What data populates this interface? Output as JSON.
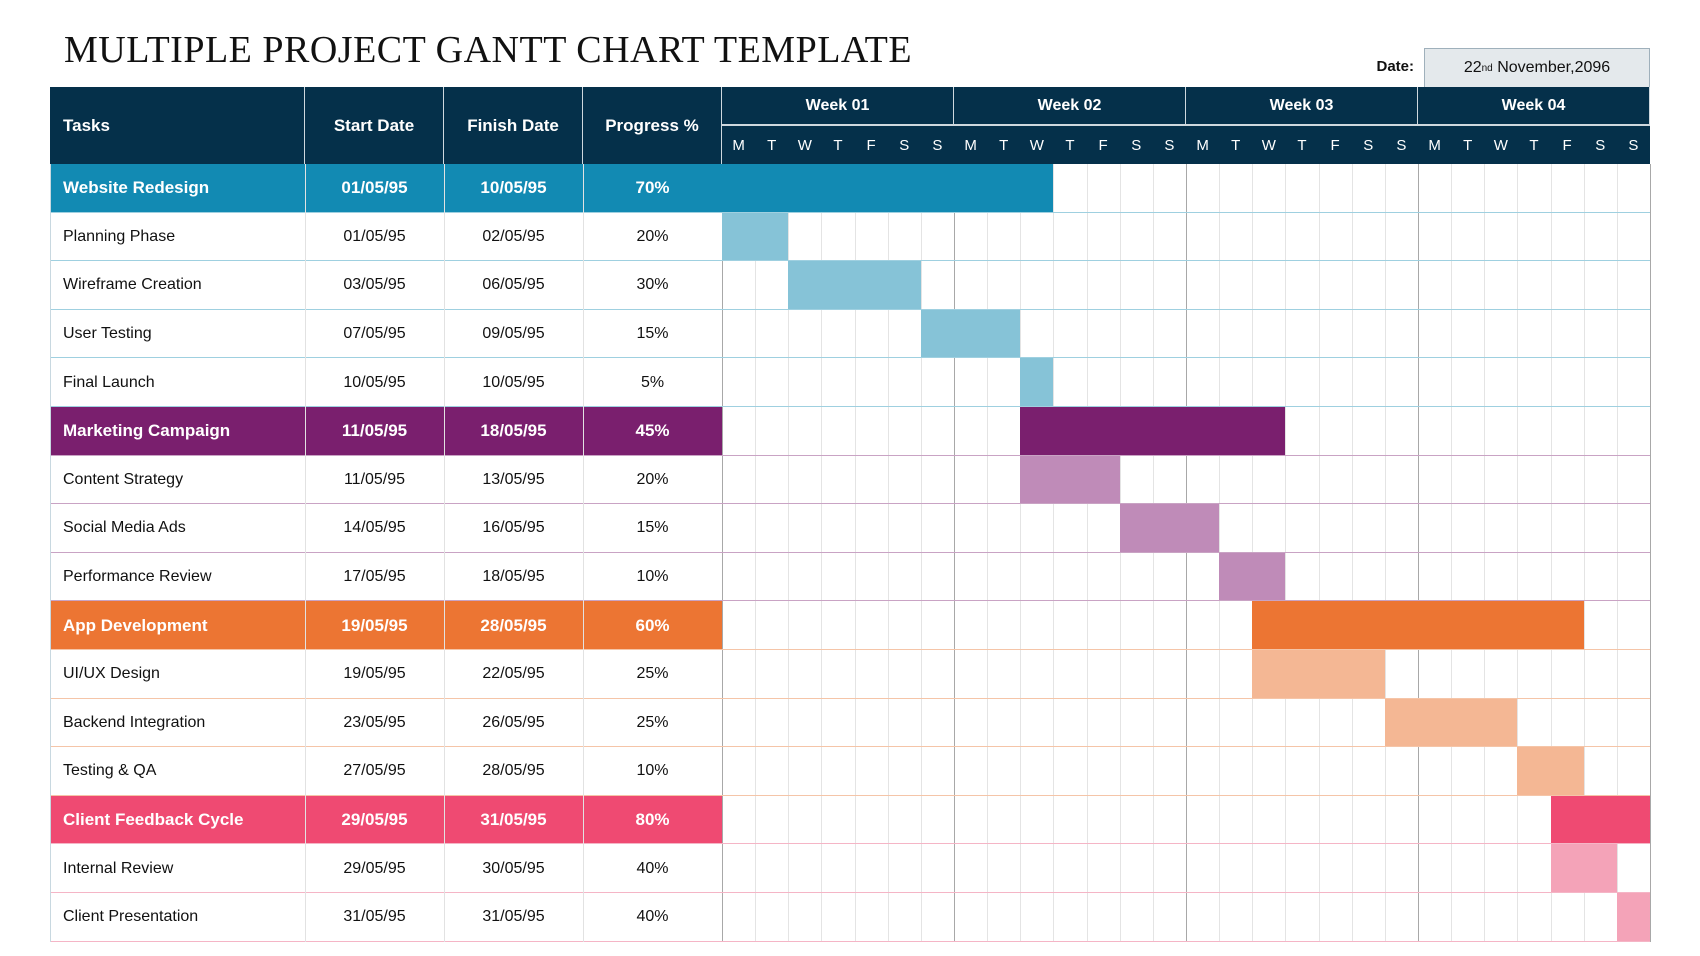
{
  "title": "MULTIPLE PROJECT GANTT CHART TEMPLATE",
  "date": {
    "label": "Date:",
    "day": "22",
    "suffix": "nd",
    "rest": " November,2096"
  },
  "chart_data": {
    "type": "gantt",
    "columns": [
      "Tasks",
      "Start Date",
      "Finish Date",
      "Progress %"
    ],
    "weeks": [
      "Week 01",
      "Week 02",
      "Week 03",
      "Week 04"
    ],
    "days": [
      "M",
      "T",
      "W",
      "T",
      "F",
      "S",
      "S"
    ],
    "colors": {
      "header": "#05304a"
    },
    "groups": [
      {
        "name": "Website Redesign",
        "start": "01/05/95",
        "finish": "10/05/95",
        "progress": "70%",
        "bar": [
          1,
          10
        ],
        "color": "#128ab3",
        "light": "#86c3d7",
        "line": "#9fd0e0",
        "tasks": [
          {
            "name": "Planning Phase",
            "start": "01/05/95",
            "finish": "02/05/95",
            "progress": "20%",
            "bar": [
              1,
              2
            ]
          },
          {
            "name": "Wireframe Creation",
            "start": "03/05/95",
            "finish": "06/05/95",
            "progress": "30%",
            "bar": [
              3,
              6
            ]
          },
          {
            "name": "User Testing",
            "start": "07/05/95",
            "finish": "09/05/95",
            "progress": "15%",
            "bar": [
              7,
              9
            ]
          },
          {
            "name": "Final Launch",
            "start": "10/05/95",
            "finish": "10/05/95",
            "progress": "5%",
            "bar": [
              10,
              10
            ]
          }
        ]
      },
      {
        "name": "Marketing Campaign",
        "start": "11/05/95",
        "finish": "18/05/95",
        "progress": "45%",
        "bar": [
          10,
          17
        ],
        "color": "#7a1f6e",
        "light": "#bf8bb8",
        "line": "#c9a3c4",
        "tasks": [
          {
            "name": "Content Strategy",
            "start": "11/05/95",
            "finish": "13/05/95",
            "progress": "20%",
            "bar": [
              10,
              12
            ]
          },
          {
            "name": "Social Media Ads",
            "start": "14/05/95",
            "finish": "16/05/95",
            "progress": "15%",
            "bar": [
              13,
              15
            ]
          },
          {
            "name": "Performance Review",
            "start": "17/05/95",
            "finish": "18/05/95",
            "progress": "10%",
            "bar": [
              16,
              17
            ]
          }
        ]
      },
      {
        "name": "App Development",
        "start": "19/05/95",
        "finish": "28/05/95",
        "progress": "60%",
        "bar": [
          17,
          26
        ],
        "color": "#ec7533",
        "light": "#f4b794",
        "line": "#f5c5a8",
        "tasks": [
          {
            "name": "UI/UX Design",
            "start": "19/05/95",
            "finish": "22/05/95",
            "progress": "25%",
            "bar": [
              17,
              20
            ]
          },
          {
            "name": "Backend Integration",
            "start": "23/05/95",
            "finish": "26/05/95",
            "progress": "25%",
            "bar": [
              21,
              24
            ]
          },
          {
            "name": "Testing & QA",
            "start": "27/05/95",
            "finish": "28/05/95",
            "progress": "10%",
            "bar": [
              25,
              26
            ]
          }
        ]
      },
      {
        "name": "Client Feedback Cycle",
        "start": "29/05/95",
        "finish": "31/05/95",
        "progress": "80%",
        "bar": [
          26,
          28
        ],
        "color": "#ef4a72",
        "light": "#f4a3b8",
        "line": "#f5b5c6",
        "tasks": [
          {
            "name": "Internal Review",
            "start": "29/05/95",
            "finish": "30/05/95",
            "progress": "40%",
            "bar": [
              26,
              27
            ]
          },
          {
            "name": "Client Presentation",
            "start": "31/05/95",
            "finish": "31/05/95",
            "progress": "40%",
            "bar": [
              28,
              28
            ]
          }
        ]
      }
    ]
  }
}
